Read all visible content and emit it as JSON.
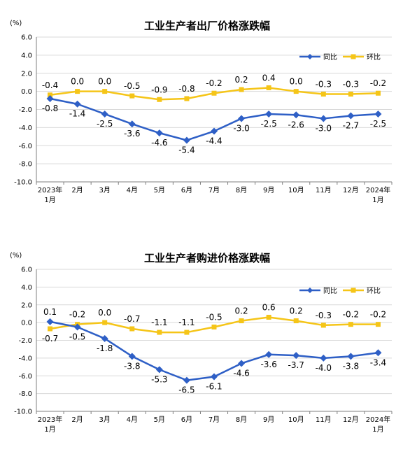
{
  "colors": {
    "yoy": "#2e5fc6",
    "mom": "#f5c518",
    "grid": "#d9d9d9",
    "axis": "#7f7f7f"
  },
  "chart_data": [
    {
      "type": "line",
      "title": "工业生产者出厂价格涨跌幅",
      "unit": "(%)",
      "ylim": [
        -10,
        6
      ],
      "yticks": [
        "6.0",
        "4.0",
        "2.0",
        "0.0",
        "-2.0",
        "-4.0",
        "-6.0",
        "-8.0",
        "-10.0"
      ],
      "ytick_values": [
        6,
        4,
        2,
        0,
        -2,
        -4,
        -6,
        -8,
        -10
      ],
      "categories": [
        [
          "2023年",
          "1月"
        ],
        [
          "2月"
        ],
        [
          "3月"
        ],
        [
          "4月"
        ],
        [
          "5月"
        ],
        [
          "6月"
        ],
        [
          "7月"
        ],
        [
          "8月"
        ],
        [
          "9月"
        ],
        [
          "10月"
        ],
        [
          "11月"
        ],
        [
          "12月"
        ],
        [
          "2024年",
          "1月"
        ]
      ],
      "legend_position": "top-right",
      "grid": true,
      "series": [
        {
          "name": "同比",
          "marker": "diamond",
          "values": [
            -0.8,
            -1.4,
            -2.5,
            -3.6,
            -4.6,
            -5.4,
            -4.4,
            -3.0,
            -2.5,
            -2.6,
            -3.0,
            -2.7,
            -2.5
          ],
          "labels": [
            "-0.8",
            "-1.4",
            "-2.5",
            "-3.6",
            "-4.6",
            "-5.4",
            "-4.4",
            "-3.0",
            "-2.5",
            "-2.6",
            "-3.0",
            "-2.7",
            "-2.5"
          ]
        },
        {
          "name": "环比",
          "marker": "square",
          "values": [
            -0.4,
            0.0,
            0.0,
            -0.5,
            -0.9,
            -0.8,
            -0.2,
            0.2,
            0.4,
            0.0,
            -0.3,
            -0.3,
            -0.2
          ],
          "labels": [
            "-0.4",
            "0.0",
            "0.0",
            "-0.5",
            "-0.9",
            "-0.8",
            "-0.2",
            "0.2",
            "0.4",
            "0.0",
            "-0.3",
            "-0.3",
            "-0.2"
          ]
        }
      ]
    },
    {
      "type": "line",
      "title": "工业生产者购进价格涨跌幅",
      "unit": "(%)",
      "ylim": [
        -10,
        6
      ],
      "yticks": [
        "6.0",
        "4.0",
        "2.0",
        "0.0",
        "-2.0",
        "-4.0",
        "-6.0",
        "-8.0",
        "-10.0"
      ],
      "ytick_values": [
        6,
        4,
        2,
        0,
        -2,
        -4,
        -6,
        -8,
        -10
      ],
      "categories": [
        [
          "2023年",
          "1月"
        ],
        [
          "2月"
        ],
        [
          "3月"
        ],
        [
          "4月"
        ],
        [
          "5月"
        ],
        [
          "6月"
        ],
        [
          "7月"
        ],
        [
          "8月"
        ],
        [
          "9月"
        ],
        [
          "10月"
        ],
        [
          "11月"
        ],
        [
          "12月"
        ],
        [
          "2024年",
          "1月"
        ]
      ],
      "legend_position": "top-right",
      "grid": true,
      "series": [
        {
          "name": "同比",
          "marker": "diamond",
          "values": [
            0.1,
            -0.5,
            -1.8,
            -3.8,
            -5.3,
            -6.5,
            -6.1,
            -4.6,
            -3.6,
            -3.7,
            -4.0,
            -3.8,
            -3.4
          ],
          "labels": [
            "0.1",
            "-0.5",
            "-1.8",
            "-3.8",
            "-5.3",
            "-6.5",
            "-6.1",
            "-4.6",
            "-3.6",
            "-3.7",
            "-4.0",
            "-3.8",
            "-3.4"
          ]
        },
        {
          "name": "环比",
          "marker": "square",
          "values": [
            -0.7,
            -0.2,
            0.0,
            -0.7,
            -1.1,
            -1.1,
            -0.5,
            0.2,
            0.6,
            0.2,
            -0.3,
            -0.2,
            -0.2
          ],
          "labels": [
            "-0.7",
            "-0.2",
            "0.0",
            "-0.7",
            "-1.1",
            "-1.1",
            "-0.5",
            "0.2",
            "0.6",
            "0.2",
            "-0.3",
            "-0.2",
            "-0.2"
          ]
        }
      ]
    }
  ]
}
